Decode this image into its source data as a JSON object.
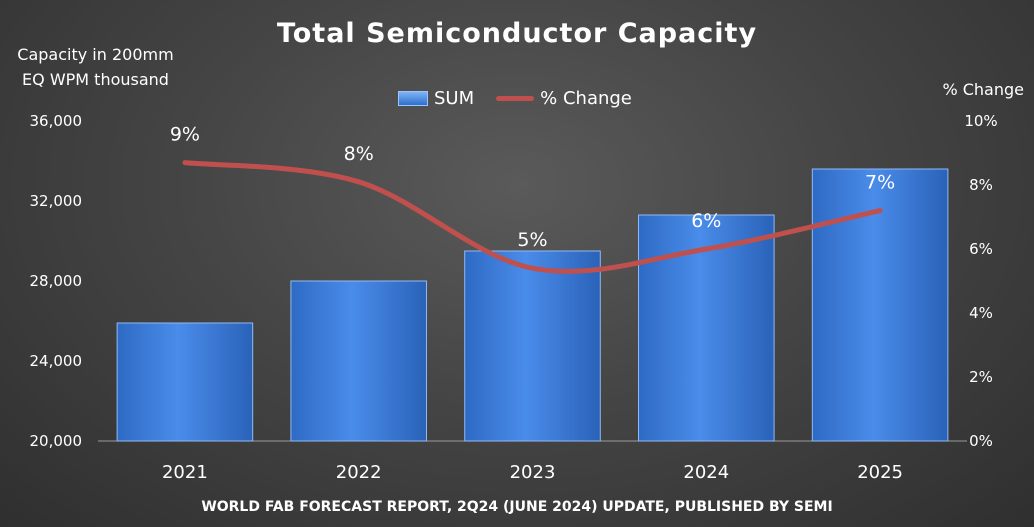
{
  "chart_data": {
    "type": "bar",
    "title": "Total Semiconductor Capacity",
    "ylabel": "Capacity in 200mm EQ WPM thousand",
    "ylabel_right": "% Change",
    "source_note": "WORLD FAB FORECAST REPORT, 2Q24 (JUNE 2024) UPDATE, PUBLISHED BY SEMI",
    "categories": [
      "2021",
      "2022",
      "2023",
      "2024",
      "2025"
    ],
    "ylim": [
      20000,
      36000
    ],
    "yticks": [
      20000,
      24000,
      28000,
      32000,
      36000
    ],
    "ytick_labels": [
      "20,000",
      "24,000",
      "28,000",
      "32,000",
      "36,000"
    ],
    "y2lim": [
      0,
      10
    ],
    "y2ticks": [
      0,
      2,
      4,
      6,
      8,
      10
    ],
    "y2tick_labels": [
      "0%",
      "2%",
      "4%",
      "6%",
      "8%",
      "10%"
    ],
    "series": [
      {
        "name": "SUM",
        "type": "bar",
        "axis": "left",
        "values": [
          25900,
          28000,
          29500,
          31300,
          33600
        ]
      },
      {
        "name": "% Change",
        "type": "line",
        "axis": "right",
        "values": [
          8.7,
          8.1,
          5.4,
          6.0,
          7.2
        ],
        "labels": [
          "9%",
          "8%",
          "5%",
          "6%",
          "7%"
        ]
      }
    ],
    "legend": "top-center",
    "grid": false
  },
  "colors": {
    "bar": "#3f7fd9",
    "line": "#c0504d"
  }
}
